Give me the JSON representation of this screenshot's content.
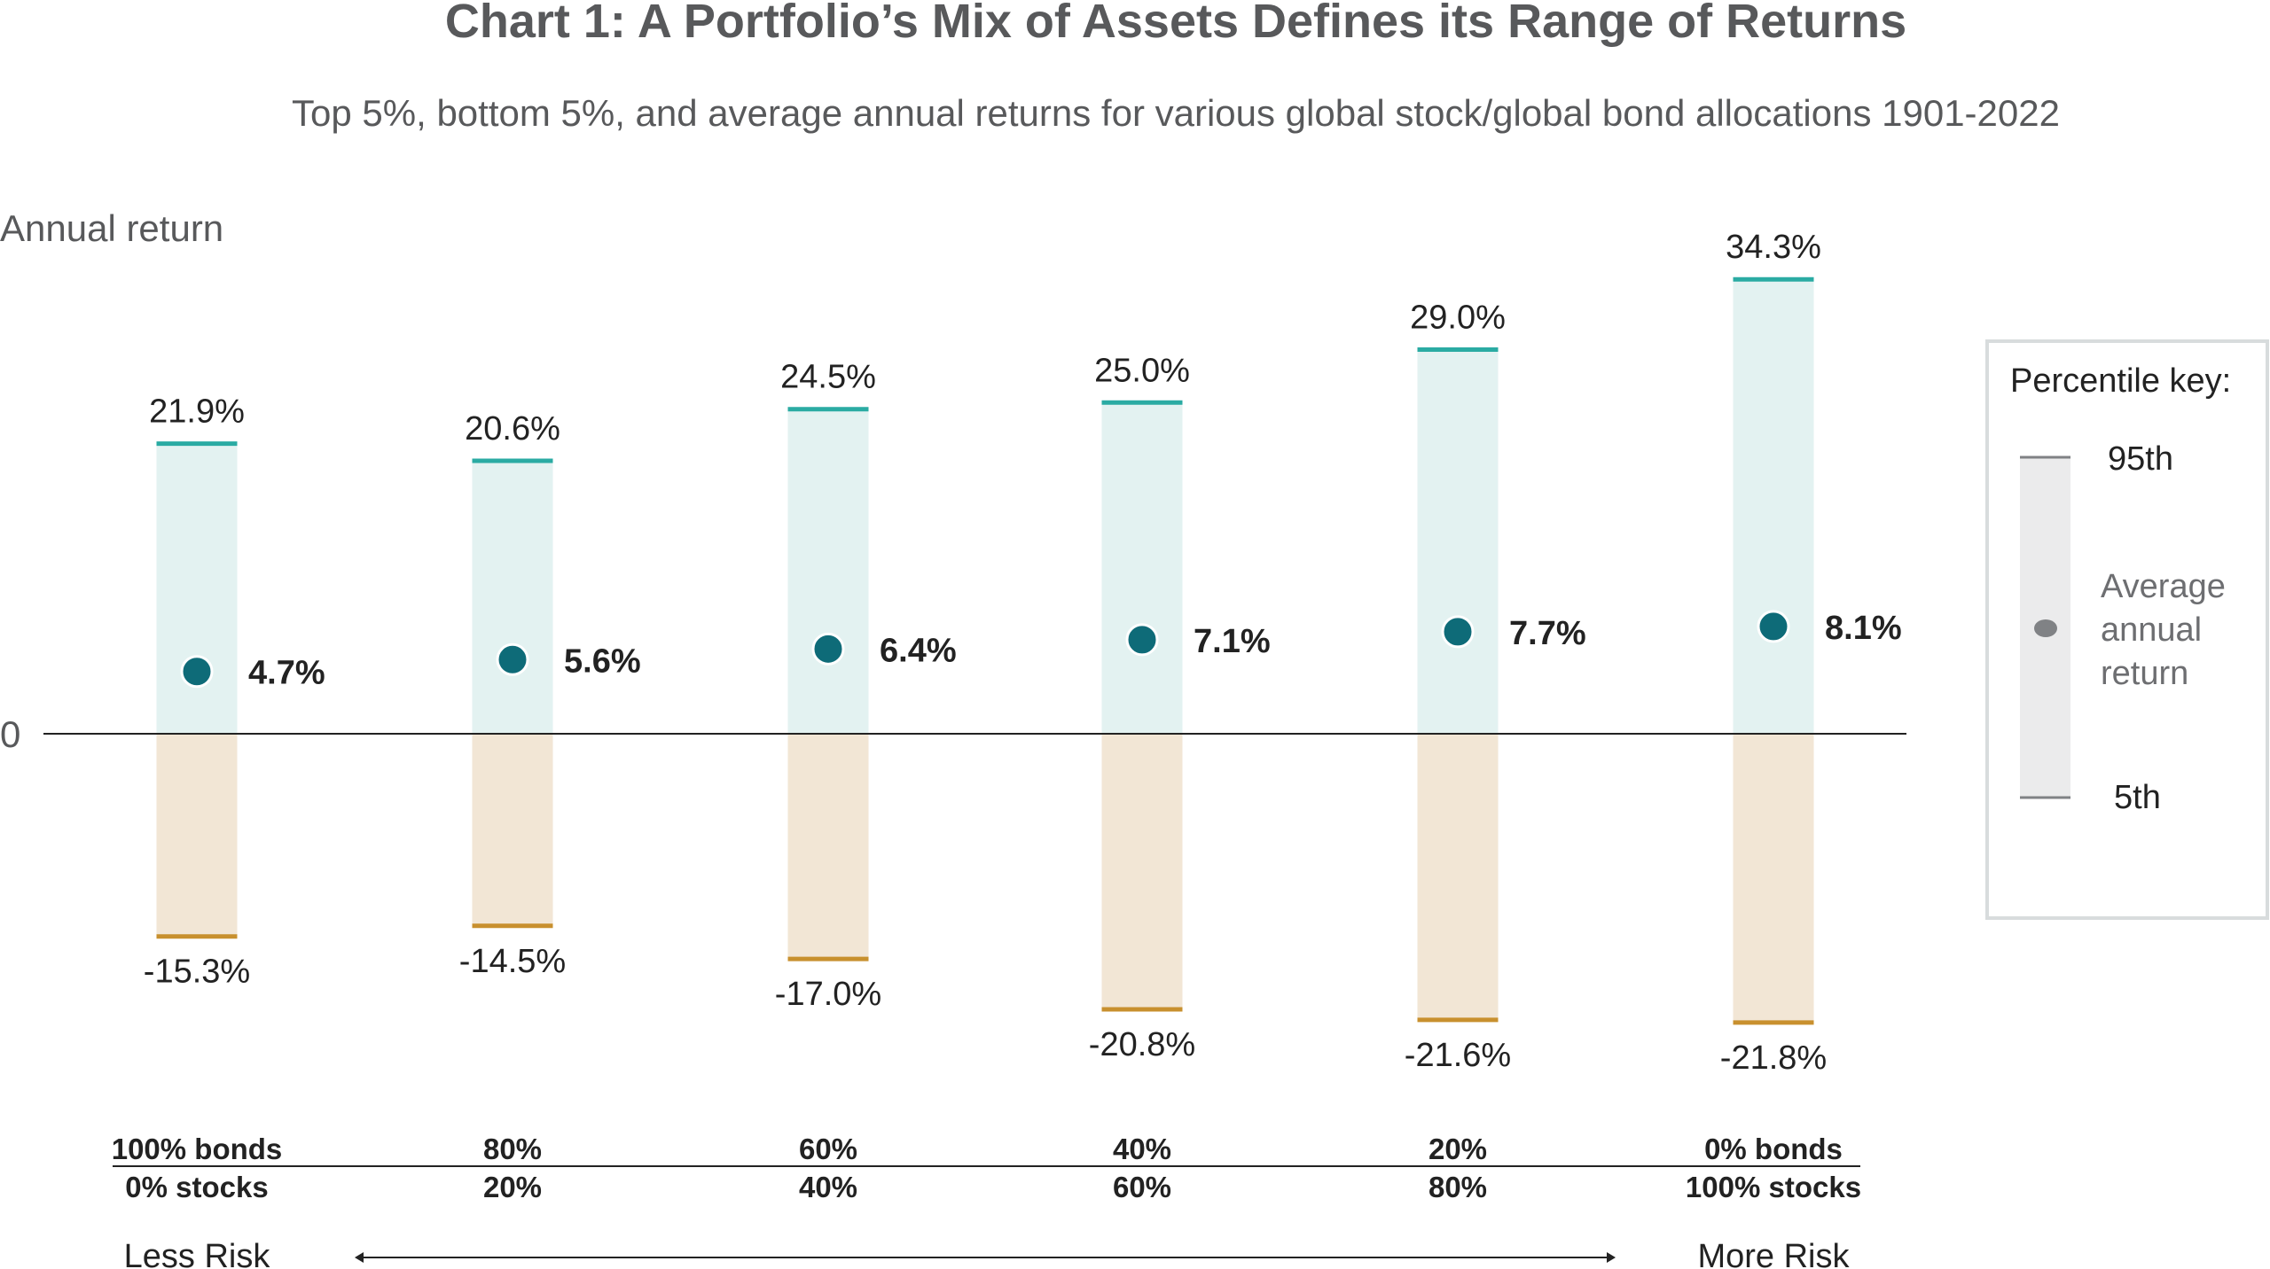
{
  "chart_data": {
    "type": "range-bar",
    "title": "Chart 1: A Portfolio’s Mix of Assets Defines its Range of Returns",
    "subtitle": "Top 5%, bottom 5%, and average annual returns for various global stock/global bond allocations 1901-2022",
    "ylabel": "Annual return",
    "zero_label": "0",
    "ylim": [
      -25,
      37
    ],
    "categories": [
      {
        "bonds": "100% bonds",
        "stocks": "0% stocks"
      },
      {
        "bonds": "80%",
        "stocks": "20%"
      },
      {
        "bonds": "60%",
        "stocks": "40%"
      },
      {
        "bonds": "40%",
        "stocks": "60%"
      },
      {
        "bonds": "20%",
        "stocks": "80%"
      },
      {
        "bonds": "0% bonds",
        "stocks": "100% stocks"
      }
    ],
    "series": [
      {
        "name": "95th",
        "values": [
          21.9,
          20.6,
          24.5,
          25.0,
          29.0,
          34.3
        ]
      },
      {
        "name": "Average annual return",
        "values": [
          4.7,
          5.6,
          6.4,
          7.1,
          7.7,
          8.1
        ]
      },
      {
        "name": "5th",
        "values": [
          -15.3,
          -14.5,
          -17.0,
          -20.8,
          -21.6,
          -21.8
        ]
      }
    ],
    "labels": {
      "top": [
        "21.9%",
        "20.6%",
        "24.5%",
        "25.0%",
        "29.0%",
        "34.3%"
      ],
      "avg": [
        "4.7%",
        "5.6%",
        "6.4%",
        "7.1%",
        "7.7%",
        "8.1%"
      ],
      "bottom": [
        "-15.3%",
        "-14.5%",
        "-17.0%",
        "-20.8%",
        "-21.6%",
        "-21.8%"
      ]
    },
    "risk": {
      "left": "Less Risk",
      "right": "More Risk"
    },
    "legend": {
      "title": "Percentile key:",
      "top": "95th",
      "avg_lines": [
        "Average",
        "annual",
        "return"
      ],
      "bottom": "5th",
      "placement": "right"
    },
    "colors": {
      "title": "#58595b",
      "positive_fill": "#e3f2f1",
      "top_line": "#2aaba3",
      "negative_fill": "#f2e6d5",
      "bottom_line": "#c8902e",
      "dot": "#0e6b78",
      "legend_fill": "#ebebec",
      "legend_dot": "#808285"
    }
  }
}
